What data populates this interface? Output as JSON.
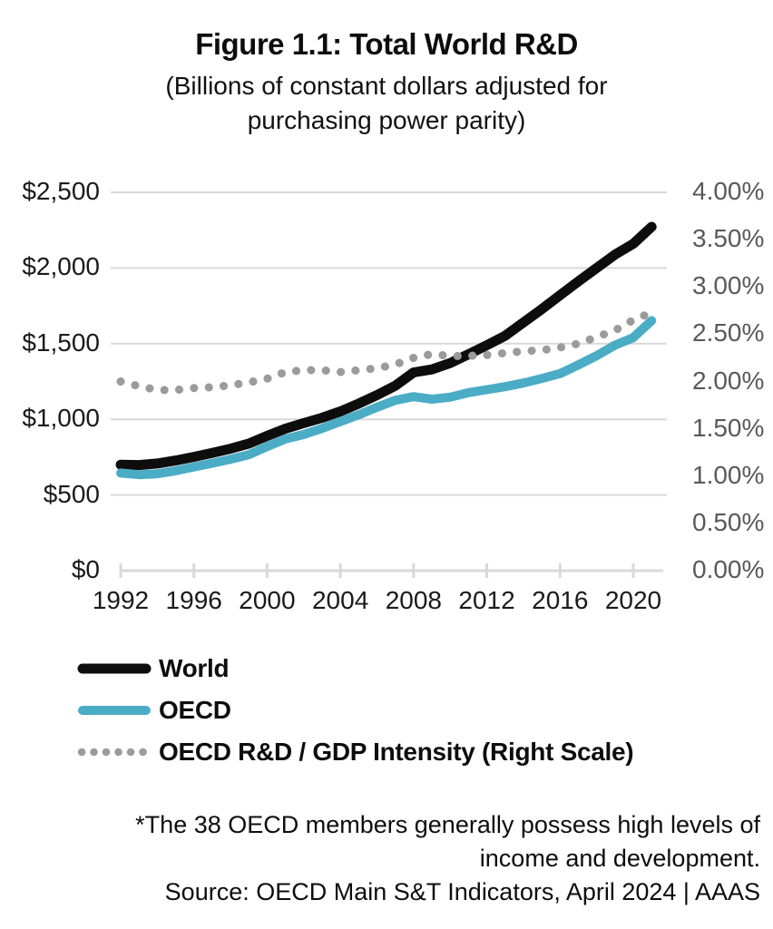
{
  "title": "Figure 1.1: Total World R&D",
  "subtitle_line1": "(Billions of constant dollars adjusted for",
  "subtitle_line2": "purchasing power parity)",
  "footnote_line1": "*The 38 OECD members generally possess high levels of",
  "footnote_line2": "income and development.",
  "footnote_line3": "Source: OECD Main S&T Indicators, April 2024 | AAAS",
  "colors": {
    "world_line": "#0d0d0d",
    "oecd_line": "#4BACC6",
    "intensity_dots": "#9b9b9b",
    "gridline": "#d9d9d9",
    "axis_line": "#d9d9d9",
    "left_axis_text": "#1a1a1a",
    "right_axis_text": "#595959",
    "background": "#ffffff"
  },
  "chart_data": {
    "type": "line",
    "title": "Figure 1.1: Total World R&D",
    "subtitle": "(Billions of constant dollars adjusted for purchasing power parity)",
    "grid": true,
    "legend_position": "bottom-left",
    "x": [
      1992,
      1993,
      1994,
      1995,
      1996,
      1997,
      1998,
      1999,
      2000,
      2001,
      2002,
      2003,
      2004,
      2005,
      2006,
      2007,
      2008,
      2009,
      2010,
      2011,
      2012,
      2013,
      2014,
      2015,
      2016,
      2017,
      2018,
      2019,
      2020,
      2021
    ],
    "series": [
      {
        "name": "World",
        "axis": "left",
        "style": "solid",
        "color": "#0d0d0d",
        "values": [
          700,
          698,
          708,
          728,
          752,
          778,
          806,
          840,
          890,
          938,
          975,
          1010,
          1052,
          1104,
          1160,
          1222,
          1310,
          1330,
          1372,
          1430,
          1490,
          1552,
          1640,
          1728,
          1820,
          1912,
          2000,
          2088,
          2160,
          2272
        ]
      },
      {
        "name": "OECD",
        "axis": "left",
        "style": "solid",
        "color": "#4BACC6",
        "values": [
          645,
          634,
          640,
          660,
          685,
          710,
          736,
          766,
          820,
          870,
          900,
          940,
          985,
          1030,
          1080,
          1126,
          1150,
          1133,
          1146,
          1176,
          1196,
          1216,
          1240,
          1270,
          1302,
          1360,
          1420,
          1490,
          1540,
          1652
        ]
      },
      {
        "name": "OECD R&D / GDP Intensity (Right Scale)",
        "axis": "right",
        "style": "dotted",
        "color": "#9b9b9b",
        "values": [
          2.0,
          1.95,
          1.91,
          1.91,
          1.93,
          1.94,
          1.96,
          1.99,
          2.03,
          2.1,
          2.12,
          2.12,
          2.1,
          2.12,
          2.14,
          2.18,
          2.25,
          2.29,
          2.27,
          2.27,
          2.28,
          2.3,
          2.32,
          2.33,
          2.36,
          2.4,
          2.47,
          2.54,
          2.65,
          2.73
        ]
      }
    ],
    "left_axis": {
      "range": [
        0,
        2500
      ],
      "tick_values": [
        0,
        500,
        1000,
        1500,
        2000,
        2500
      ],
      "tick_labels": [
        "$0",
        "$500",
        "$1,000",
        "$1,500",
        "$2,000",
        "$2,500"
      ]
    },
    "right_axis": {
      "range": [
        0,
        4
      ],
      "tick_values": [
        0,
        0.5,
        1,
        1.5,
        2,
        2.5,
        3,
        3.5,
        4
      ],
      "tick_labels": [
        "0.00%",
        "0.50%",
        "1.00%",
        "1.50%",
        "2.00%",
        "2.50%",
        "3.00%",
        "3.50%",
        "4.00%"
      ]
    },
    "x_axis": {
      "tick_values": [
        1992,
        1996,
        2000,
        2004,
        2008,
        2012,
        2016,
        2020
      ],
      "tick_labels": [
        "1992",
        "1996",
        "2000",
        "2004",
        "2008",
        "2012",
        "2016",
        "2020"
      ]
    }
  },
  "legend": {
    "items": [
      {
        "label": "World"
      },
      {
        "label": "OECD"
      },
      {
        "label": "OECD R&D / GDP Intensity (Right Scale)"
      }
    ]
  }
}
